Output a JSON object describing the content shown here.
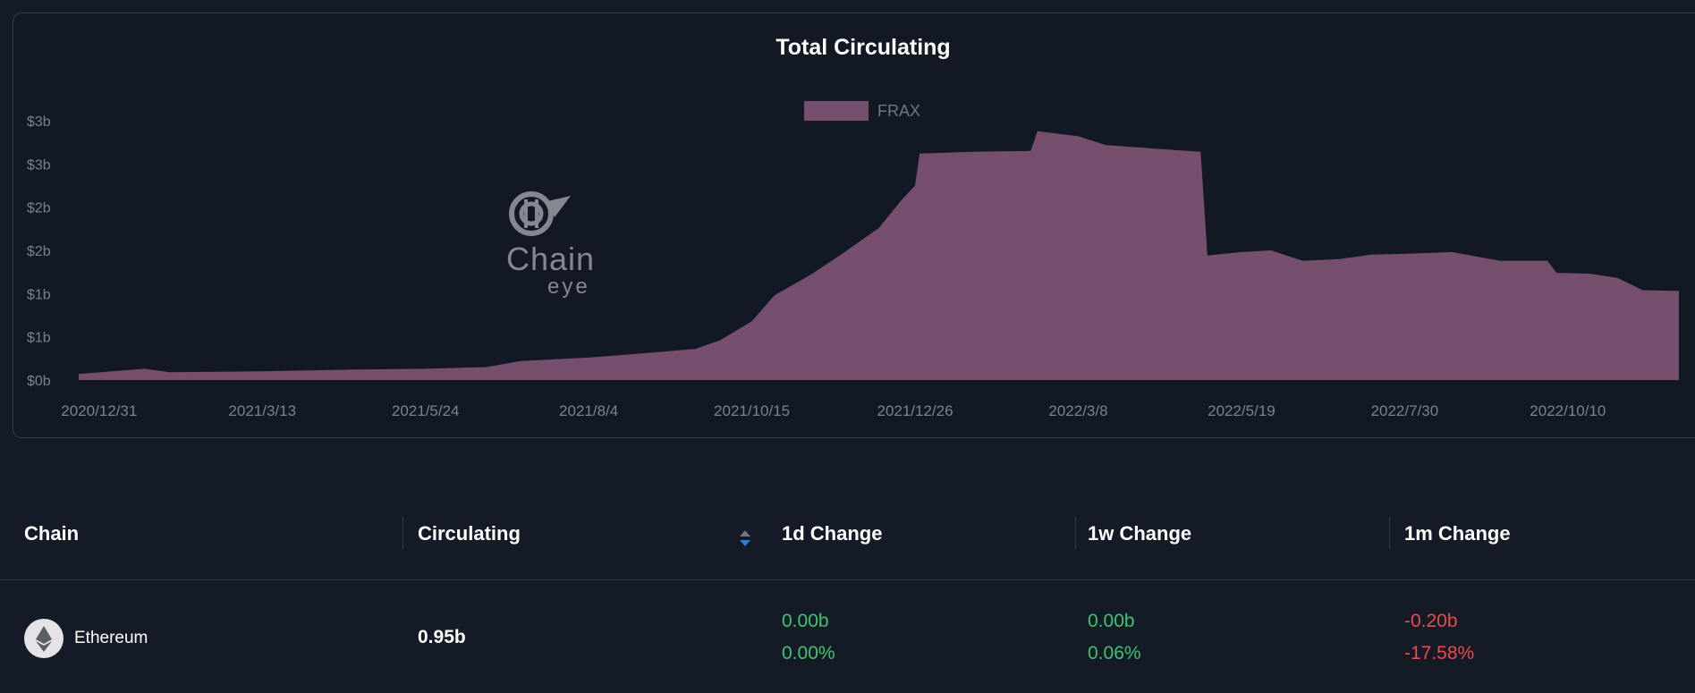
{
  "chart_data": {
    "type": "area",
    "title": "Total Circulating",
    "legend": [
      "FRAX"
    ],
    "legend_placement": "top-center",
    "series_color": "#754f6d",
    "y_tick_labels": [
      "$0b",
      "$1b",
      "$1b",
      "$2b",
      "$2b",
      "$3b",
      "$3b"
    ],
    "y_tick_values": [
      0,
      0.5,
      1.0,
      1.5,
      2.0,
      2.5,
      3.0
    ],
    "x_tick_labels": [
      "2020/12/31",
      "2021/3/13",
      "2021/5/24",
      "2021/8/4",
      "2021/10/15",
      "2021/12/26",
      "2022/3/8",
      "2022/5/19",
      "2022/7/30",
      "2022/10/10"
    ],
    "ylim": [
      0,
      3.0
    ],
    "x_range": [
      "2020/12/22",
      "2022/11/28"
    ],
    "grid": false,
    "series": [
      {
        "name": "FRAX",
        "points": [
          [
            "2020/12/22",
            0.07
          ],
          [
            "2021/1/20",
            0.13
          ],
          [
            "2021/1/31",
            0.09
          ],
          [
            "2021/3/13",
            0.1
          ],
          [
            "2021/4/20",
            0.12
          ],
          [
            "2021/5/24",
            0.13
          ],
          [
            "2021/6/20",
            0.15
          ],
          [
            "2021/7/5",
            0.22
          ],
          [
            "2021/8/4",
            0.26
          ],
          [
            "2021/9/2",
            0.32
          ],
          [
            "2021/9/20",
            0.36
          ],
          [
            "2021/10/1",
            0.46
          ],
          [
            "2021/10/15",
            0.68
          ],
          [
            "2021/10/25",
            0.98
          ],
          [
            "2021/11/10",
            1.22
          ],
          [
            "2021/11/25",
            1.48
          ],
          [
            "2021/12/10",
            1.76
          ],
          [
            "2021/12/20",
            2.08
          ],
          [
            "2021/12/26",
            2.25
          ],
          [
            "2021/12/28",
            2.62
          ],
          [
            "2022/1/20",
            2.64
          ],
          [
            "2022/2/15",
            2.65
          ],
          [
            "2022/2/18",
            2.88
          ],
          [
            "2022/3/8",
            2.82
          ],
          [
            "2022/3/20",
            2.72
          ],
          [
            "2022/4/20",
            2.66
          ],
          [
            "2022/5/1",
            2.64
          ],
          [
            "2022/5/4",
            1.44
          ],
          [
            "2022/5/19",
            1.48
          ],
          [
            "2022/6/1",
            1.5
          ],
          [
            "2022/6/15",
            1.38
          ],
          [
            "2022/7/1",
            1.4
          ],
          [
            "2022/7/15",
            1.45
          ],
          [
            "2022/7/30",
            1.46
          ],
          [
            "2022/8/20",
            1.48
          ],
          [
            "2022/9/10",
            1.38
          ],
          [
            "2022/10/1",
            1.38
          ],
          [
            "2022/10/5",
            1.24
          ],
          [
            "2022/10/20",
            1.23
          ],
          [
            "2022/11/1",
            1.18
          ],
          [
            "2022/11/12",
            1.04
          ],
          [
            "2022/11/28",
            1.03
          ]
        ]
      }
    ]
  },
  "watermark": {
    "line1": "Chain",
    "line2": "eye"
  },
  "table": {
    "headers": [
      "Chain",
      "Circulating",
      "1d Change",
      "1w Change",
      "1m Change"
    ],
    "rows": [
      {
        "chain": "Ethereum",
        "circulating": "0.95b",
        "change_1d": "0.00b",
        "change_1d_pct": "0.00%",
        "change_1w": "0.00b",
        "change_1w_pct": "0.06%",
        "change_1m": "-0.20b",
        "change_1m_pct": "-17.58%"
      }
    ]
  },
  "colors": {
    "background": "#141b27",
    "area": "#754f6d",
    "positive": "#3ec46d",
    "negative": "#ec4b4b"
  }
}
